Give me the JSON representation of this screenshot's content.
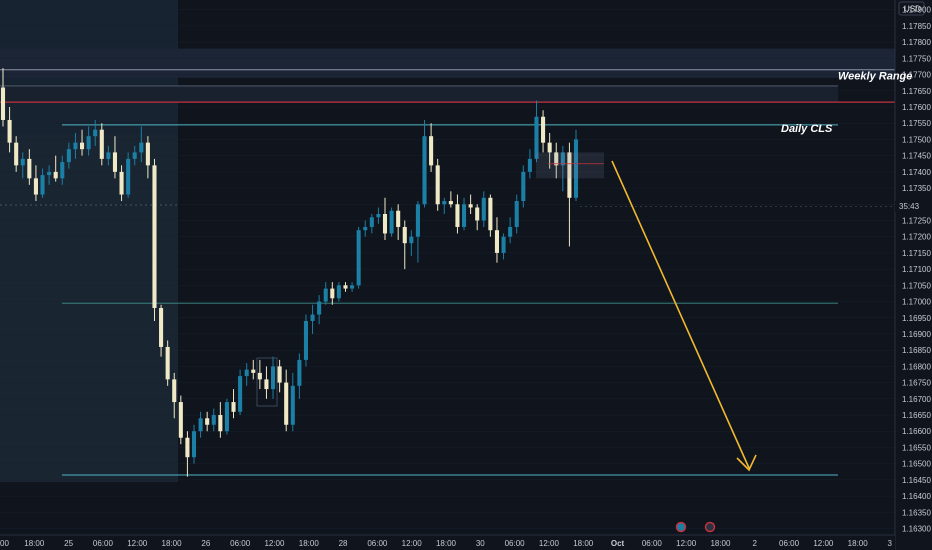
{
  "chart_data": {
    "type": "candlestick",
    "currency": "USD",
    "current_price_label": "35:43",
    "price_axis": {
      "ticks": [
        "1.17900",
        "1.17850",
        "1.17800",
        "1.17750",
        "1.17700",
        "1.17650",
        "1.17600",
        "1.17550",
        "1.17500",
        "1.17450",
        "1.17400",
        "1.17350",
        "1.17300",
        "1.17250",
        "1.17200",
        "1.17150",
        "1.17100",
        "1.17050",
        "1.17000",
        "1.16950",
        "1.16900",
        "1.16850",
        "1.16800",
        "1.16750",
        "1.16700",
        "1.16650",
        "1.16600",
        "1.16550",
        "1.16500",
        "1.16450",
        "1.16400",
        "1.16350",
        "1.16300"
      ],
      "range": [
        1.1628,
        1.1793
      ]
    },
    "time_axis": {
      "ticks": [
        "00",
        "18:00",
        "25",
        "06:00",
        "12:00",
        "18:00",
        "26",
        "06:00",
        "12:00",
        "18:00",
        "28",
        "06:00",
        "12:00",
        "18:00",
        "30",
        "06:00",
        "12:00",
        "18:00",
        "Oct",
        "06:00",
        "12:00",
        "18:00",
        "2",
        "06:00",
        "12:00",
        "18:00",
        "3"
      ]
    },
    "annotations": {
      "weekly_range_label": "Weekly Range",
      "daily_cls_label": "Daily CLS"
    },
    "levels": {
      "weekly_zone": [
        1.1769,
        1.1778
      ],
      "weekly_line_upper": 1.17715,
      "weekly_line_lower": 1.17665,
      "red_line": 1.17615,
      "daily_cls": 1.17545,
      "mid_line": 1.16995,
      "low_line": 1.16465
    },
    "colors": {
      "background": "#0f141d",
      "bull": "#1c7fa6",
      "bear": "#f0e9c6",
      "arrow": "#f2b92e",
      "red_line": "#c2333e",
      "level_line": "#4fb6c6",
      "grid": "#1a222e"
    },
    "candles": [
      {
        "o": 1.1766,
        "h": 1.1772,
        "l": 1.1754,
        "c": 1.1756
      },
      {
        "o": 1.1756,
        "h": 1.176,
        "l": 1.1746,
        "c": 1.1749
      },
      {
        "o": 1.1749,
        "h": 1.1751,
        "l": 1.174,
        "c": 1.1742
      },
      {
        "o": 1.1742,
        "h": 1.1746,
        "l": 1.1738,
        "c": 1.1744
      },
      {
        "o": 1.1744,
        "h": 1.1747,
        "l": 1.1736,
        "c": 1.1738
      },
      {
        "o": 1.1738,
        "h": 1.1742,
        "l": 1.1731,
        "c": 1.1733
      },
      {
        "o": 1.1733,
        "h": 1.1741,
        "l": 1.1732,
        "c": 1.1739
      },
      {
        "o": 1.1739,
        "h": 1.1742,
        "l": 1.1736,
        "c": 1.174
      },
      {
        "o": 1.174,
        "h": 1.1745,
        "l": 1.1737,
        "c": 1.1738
      },
      {
        "o": 1.1738,
        "h": 1.1745,
        "l": 1.1736,
        "c": 1.1743
      },
      {
        "o": 1.1743,
        "h": 1.1749,
        "l": 1.1741,
        "c": 1.1747
      },
      {
        "o": 1.1747,
        "h": 1.1752,
        "l": 1.1744,
        "c": 1.1749
      },
      {
        "o": 1.1749,
        "h": 1.1753,
        "l": 1.1745,
        "c": 1.1747
      },
      {
        "o": 1.1747,
        "h": 1.1754,
        "l": 1.1745,
        "c": 1.1751
      },
      {
        "o": 1.1751,
        "h": 1.1756,
        "l": 1.1748,
        "c": 1.1753
      },
      {
        "o": 1.1753,
        "h": 1.1755,
        "l": 1.1742,
        "c": 1.1744
      },
      {
        "o": 1.1744,
        "h": 1.1748,
        "l": 1.1742,
        "c": 1.1746
      },
      {
        "o": 1.1746,
        "h": 1.1751,
        "l": 1.1738,
        "c": 1.174
      },
      {
        "o": 1.174,
        "h": 1.1742,
        "l": 1.1731,
        "c": 1.1733
      },
      {
        "o": 1.1733,
        "h": 1.1746,
        "l": 1.1732,
        "c": 1.1744
      },
      {
        "o": 1.1744,
        "h": 1.1748,
        "l": 1.1742,
        "c": 1.1746
      },
      {
        "o": 1.1746,
        "h": 1.1754,
        "l": 1.1743,
        "c": 1.1749
      },
      {
        "o": 1.1749,
        "h": 1.1751,
        "l": 1.1738,
        "c": 1.1742
      },
      {
        "o": 1.1742,
        "h": 1.1744,
        "l": 1.1694,
        "c": 1.1698
      },
      {
        "o": 1.1698,
        "h": 1.1699,
        "l": 1.1683,
        "c": 1.1686
      },
      {
        "o": 1.1686,
        "h": 1.1688,
        "l": 1.1674,
        "c": 1.1676
      },
      {
        "o": 1.1676,
        "h": 1.1678,
        "l": 1.1664,
        "c": 1.1669
      },
      {
        "o": 1.1669,
        "h": 1.1671,
        "l": 1.1656,
        "c": 1.1658
      },
      {
        "o": 1.1658,
        "h": 1.166,
        "l": 1.1646,
        "c": 1.1652
      },
      {
        "o": 1.1652,
        "h": 1.1662,
        "l": 1.165,
        "c": 1.166
      },
      {
        "o": 1.166,
        "h": 1.1666,
        "l": 1.1658,
        "c": 1.1664
      },
      {
        "o": 1.1664,
        "h": 1.1666,
        "l": 1.166,
        "c": 1.1662
      },
      {
        "o": 1.1662,
        "h": 1.1667,
        "l": 1.166,
        "c": 1.1665
      },
      {
        "o": 1.1665,
        "h": 1.1669,
        "l": 1.1658,
        "c": 1.166
      },
      {
        "o": 1.166,
        "h": 1.167,
        "l": 1.1659,
        "c": 1.1669
      },
      {
        "o": 1.1669,
        "h": 1.1673,
        "l": 1.1664,
        "c": 1.1666
      },
      {
        "o": 1.1666,
        "h": 1.1679,
        "l": 1.1665,
        "c": 1.1677
      },
      {
        "o": 1.1677,
        "h": 1.1681,
        "l": 1.1674,
        "c": 1.1679
      },
      {
        "o": 1.1679,
        "h": 1.1682,
        "l": 1.1676,
        "c": 1.1678
      },
      {
        "o": 1.1678,
        "h": 1.1682,
        "l": 1.1673,
        "c": 1.1676
      },
      {
        "o": 1.1676,
        "h": 1.168,
        "l": 1.167,
        "c": 1.1673
      },
      {
        "o": 1.1673,
        "h": 1.1683,
        "l": 1.167,
        "c": 1.168
      },
      {
        "o": 1.168,
        "h": 1.1682,
        "l": 1.1672,
        "c": 1.1675
      },
      {
        "o": 1.1675,
        "h": 1.1679,
        "l": 1.166,
        "c": 1.1662
      },
      {
        "o": 1.1662,
        "h": 1.1678,
        "l": 1.166,
        "c": 1.1674
      },
      {
        "o": 1.1674,
        "h": 1.1684,
        "l": 1.167,
        "c": 1.1682
      },
      {
        "o": 1.1682,
        "h": 1.1696,
        "l": 1.168,
        "c": 1.1694
      },
      {
        "o": 1.1694,
        "h": 1.1699,
        "l": 1.169,
        "c": 1.1696
      },
      {
        "o": 1.1696,
        "h": 1.1702,
        "l": 1.1693,
        "c": 1.17
      },
      {
        "o": 1.17,
        "h": 1.1706,
        "l": 1.1699,
        "c": 1.1704
      },
      {
        "o": 1.1704,
        "h": 1.1706,
        "l": 1.1699,
        "c": 1.1701
      },
      {
        "o": 1.1701,
        "h": 1.1706,
        "l": 1.17,
        "c": 1.1705
      },
      {
        "o": 1.1705,
        "h": 1.1706,
        "l": 1.1703,
        "c": 1.1704
      },
      {
        "o": 1.1704,
        "h": 1.1706,
        "l": 1.1703,
        "c": 1.1705
      },
      {
        "o": 1.1705,
        "h": 1.1723,
        "l": 1.1704,
        "c": 1.1722
      },
      {
        "o": 1.1722,
        "h": 1.1725,
        "l": 1.172,
        "c": 1.1723
      },
      {
        "o": 1.1723,
        "h": 1.1727,
        "l": 1.1721,
        "c": 1.1726
      },
      {
        "o": 1.1726,
        "h": 1.1729,
        "l": 1.1724,
        "c": 1.1727
      },
      {
        "o": 1.1727,
        "h": 1.1732,
        "l": 1.1719,
        "c": 1.1721
      },
      {
        "o": 1.1721,
        "h": 1.1729,
        "l": 1.172,
        "c": 1.1728
      },
      {
        "o": 1.1728,
        "h": 1.173,
        "l": 1.1719,
        "c": 1.1723
      },
      {
        "o": 1.1723,
        "h": 1.1725,
        "l": 1.171,
        "c": 1.1718
      },
      {
        "o": 1.1718,
        "h": 1.1722,
        "l": 1.1714,
        "c": 1.172
      },
      {
        "o": 1.172,
        "h": 1.1731,
        "l": 1.1712,
        "c": 1.173
      },
      {
        "o": 1.173,
        "h": 1.1756,
        "l": 1.1729,
        "c": 1.1751
      },
      {
        "o": 1.1751,
        "h": 1.1755,
        "l": 1.174,
        "c": 1.1742
      },
      {
        "o": 1.1742,
        "h": 1.1744,
        "l": 1.1728,
        "c": 1.173
      },
      {
        "o": 1.173,
        "h": 1.1732,
        "l": 1.1727,
        "c": 1.1731
      },
      {
        "o": 1.1731,
        "h": 1.1734,
        "l": 1.1729,
        "c": 1.173
      },
      {
        "o": 1.173,
        "h": 1.1733,
        "l": 1.1721,
        "c": 1.1723
      },
      {
        "o": 1.1723,
        "h": 1.1732,
        "l": 1.1722,
        "c": 1.173
      },
      {
        "o": 1.173,
        "h": 1.1733,
        "l": 1.1727,
        "c": 1.1729
      },
      {
        "o": 1.1729,
        "h": 1.173,
        "l": 1.1722,
        "c": 1.1725
      },
      {
        "o": 1.1725,
        "h": 1.1734,
        "l": 1.1723,
        "c": 1.1732
      },
      {
        "o": 1.1732,
        "h": 1.1733,
        "l": 1.172,
        "c": 1.1722
      },
      {
        "o": 1.1722,
        "h": 1.1726,
        "l": 1.1712,
        "c": 1.1715
      },
      {
        "o": 1.1715,
        "h": 1.1721,
        "l": 1.1713,
        "c": 1.172
      },
      {
        "o": 1.172,
        "h": 1.1726,
        "l": 1.1718,
        "c": 1.1723
      },
      {
        "o": 1.1723,
        "h": 1.1733,
        "l": 1.1721,
        "c": 1.1731
      },
      {
        "o": 1.1731,
        "h": 1.1742,
        "l": 1.1729,
        "c": 1.174
      },
      {
        "o": 1.174,
        "h": 1.1747,
        "l": 1.1738,
        "c": 1.1744
      },
      {
        "o": 1.1744,
        "h": 1.1762,
        "l": 1.1743,
        "c": 1.1757
      },
      {
        "o": 1.1757,
        "h": 1.1759,
        "l": 1.1746,
        "c": 1.1749
      },
      {
        "o": 1.1749,
        "h": 1.1752,
        "l": 1.1741,
        "c": 1.1746
      },
      {
        "o": 1.1746,
        "h": 1.1749,
        "l": 1.1738,
        "c": 1.1742
      },
      {
        "o": 1.1742,
        "h": 1.1748,
        "l": 1.1734,
        "c": 1.1746
      },
      {
        "o": 1.1746,
        "h": 1.1749,
        "l": 1.1717,
        "c": 1.1732
      },
      {
        "o": 1.1732,
        "h": 1.1753,
        "l": 1.1731,
        "c": 1.175
      }
    ]
  }
}
